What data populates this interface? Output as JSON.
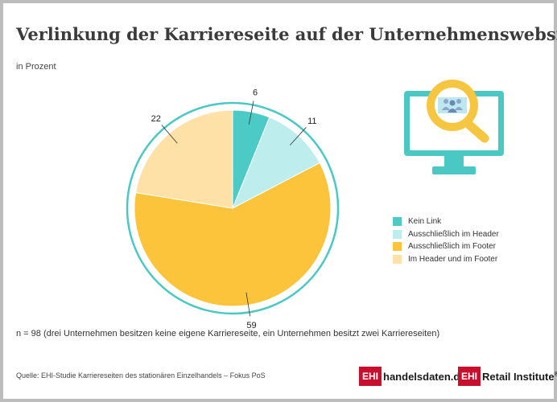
{
  "title": "Verlinkung der Karriereseite auf der Unternehmenswebsite",
  "subtitle": "in Prozent",
  "note": "n = 98 (drei Unternehmen besitzen keine eigene Karriereseite, ein Unternehmen besitzt zwei Karriereseiten)",
  "source": "Quelle: EHI-Studie Karriereseiten des stationären Einzelhandels – Fokus PoS",
  "logos": {
    "left_box": "EHI",
    "left_text": "handelsdaten.de",
    "right_box": "EHI",
    "right_text": "Retail Institute",
    "right_mark": "®"
  },
  "icon": "computer-search-people-icon",
  "colors": {
    "ring": "#4ac9c4",
    "icon_teal": "#4ac9c4",
    "icon_yellow": "#f7c640",
    "logo_red": "#c8102e"
  },
  "chart_data": {
    "type": "pie",
    "title": "Verlinkung der Karriereseite auf der Unternehmenswebsite",
    "unit": "in Prozent",
    "start": "12 o'clock, clockwise",
    "legend_position": "right",
    "categories": [
      "Kein Link",
      "Ausschließlich im Header",
      "Ausschließlich im Footer",
      "Im Header und im Footer"
    ],
    "values": [
      6,
      11,
      59,
      22
    ],
    "labels": [
      "6",
      "11",
      "59",
      "22"
    ],
    "colors": [
      "#4ccbc6",
      "#bdeeed",
      "#fbc43a",
      "#fde1a6"
    ]
  }
}
